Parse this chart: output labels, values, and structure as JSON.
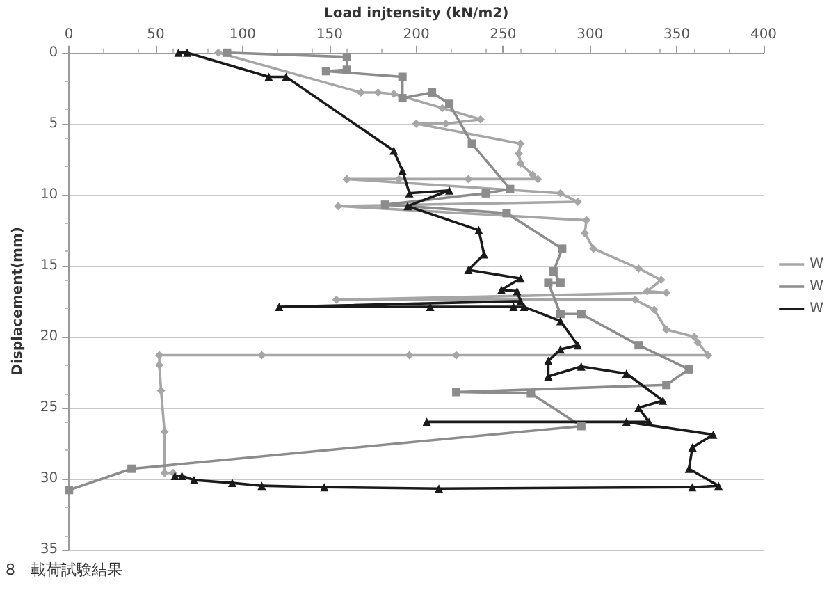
{
  "chart_data": {
    "type": "line",
    "xlabel": "Load injtensity (kN/m2)",
    "ylabel": "Displacement(mm)",
    "xlim": [
      0,
      400
    ],
    "xticks": [
      0,
      50,
      100,
      150,
      200,
      250,
      300,
      350,
      400
    ],
    "ylim": [
      35,
      0
    ],
    "yticks": [
      0,
      5,
      10,
      15,
      20,
      25,
      30,
      35
    ],
    "grid": "y",
    "legend": "right",
    "annotations": [
      "8　載荷試験結果"
    ],
    "series": [
      {
        "name": "W",
        "color": "#a6a6a6",
        "marker": "diamond",
        "x": [
          86,
          168,
          178,
          187,
          215,
          237,
          217,
          200,
          260,
          259,
          260,
          267,
          270,
          230,
          190,
          160,
          283,
          293,
          155,
          298,
          297,
          302,
          328,
          341,
          333,
          344,
          154,
          326,
          337,
          344,
          360,
          362,
          368,
          223,
          196,
          111,
          52,
          52,
          53,
          55,
          55,
          60
        ],
        "values": [
          0,
          2.8,
          2.8,
          2.9,
          3.9,
          4.7,
          5,
          5,
          6.4,
          7.1,
          7.8,
          8.6,
          8.9,
          8.9,
          8.9,
          8.9,
          9.9,
          10.5,
          10.8,
          11.8,
          12.7,
          13.8,
          15.2,
          16,
          16.8,
          16.9,
          17.4,
          17.4,
          18.1,
          19.5,
          20,
          20.4,
          21.3,
          21.3,
          21.3,
          21.3,
          21.3,
          22,
          23.8,
          26.7,
          29.6,
          29.6
        ]
      },
      {
        "name": "W",
        "color": "#8c8c8c",
        "marker": "square",
        "x": [
          91,
          160,
          160,
          148,
          192,
          192,
          209,
          219,
          232,
          254,
          240,
          182,
          252,
          284,
          279,
          283,
          276,
          283,
          295,
          328,
          357,
          344,
          223,
          266,
          295,
          36,
          0
        ],
        "values": [
          0,
          0.3,
          1.2,
          1.3,
          1.7,
          3.2,
          2.8,
          3.6,
          6.4,
          9.6,
          9.9,
          10.7,
          11.3,
          13.8,
          15.4,
          16.2,
          16.2,
          18.4,
          18.4,
          20.6,
          22.3,
          23.4,
          23.9,
          24,
          26.3,
          29.3,
          30.8
        ]
      },
      {
        "name": "W",
        "color": "#1a1a1a",
        "marker": "triangle",
        "x": [
          63,
          68,
          115,
          125,
          187,
          192,
          196,
          219,
          195,
          236,
          239,
          230,
          260,
          249,
          258,
          260,
          121,
          208,
          256,
          262,
          283,
          293,
          283,
          276,
          276,
          295,
          321,
          342,
          328,
          334,
          206,
          321,
          371,
          359,
          357,
          374,
          359,
          213,
          147,
          111,
          94,
          72,
          65,
          61
        ],
        "values": [
          0,
          0,
          1.7,
          1.7,
          6.9,
          8.3,
          9.9,
          9.7,
          10.8,
          12.5,
          14.2,
          15.3,
          15.9,
          16.7,
          16.8,
          17.5,
          17.9,
          17.9,
          17.9,
          17.9,
          18.9,
          20.6,
          20.9,
          21.7,
          22.8,
          22.1,
          22.6,
          24.5,
          25,
          26,
          26,
          26,
          26.9,
          27.8,
          29.3,
          30.5,
          30.6,
          30.7,
          30.6,
          30.5,
          30.3,
          30.1,
          29.8,
          29.8
        ]
      }
    ]
  }
}
